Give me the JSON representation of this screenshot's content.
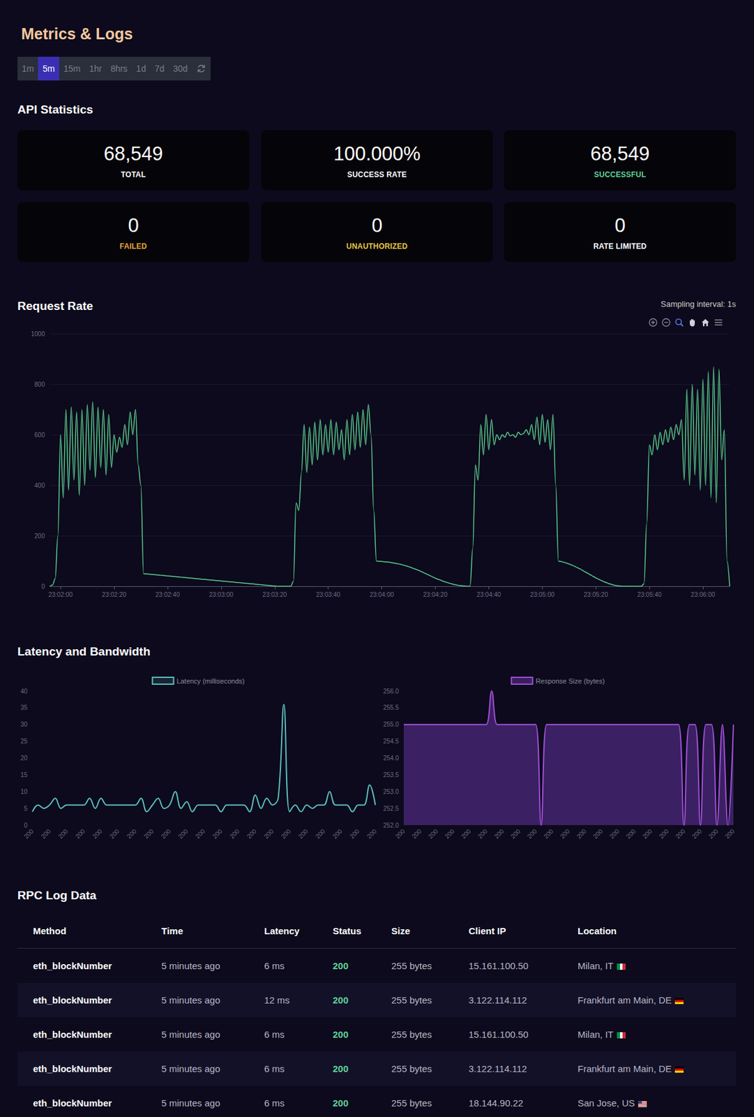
{
  "header": {
    "title": "Metrics & Logs",
    "time_ranges": [
      "1m",
      "5m",
      "15m",
      "1hr",
      "8hrs",
      "1d",
      "7d",
      "30d"
    ],
    "selected_range": "5m"
  },
  "api_statistics": {
    "title": "API Statistics",
    "cards": [
      {
        "value": "68,549",
        "label": "TOTAL"
      },
      {
        "value": "100.000%",
        "label": "SUCCESS RATE"
      },
      {
        "value": "68,549",
        "label": "SUCCESSFUL"
      },
      {
        "value": "0",
        "label": "FAILED"
      },
      {
        "value": "0",
        "label": "UNAUTHORIZED"
      },
      {
        "value": "0",
        "label": "RATE LIMITED"
      }
    ]
  },
  "latency_section": {
    "title": "Latency and Bandwidth"
  },
  "chart_data": [
    {
      "type": "line",
      "title": "Request Rate",
      "subtitle": "Sampling interval: 1s",
      "color": "#5ccf8f",
      "grid": true,
      "x": [
        82916,
        82917,
        82918,
        82919,
        82920,
        82921,
        82922,
        82923,
        82924,
        82925,
        82926,
        82927,
        82928,
        82929,
        82930,
        82931,
        82932,
        82933,
        82934,
        82935,
        82936,
        82937,
        82938,
        82939,
        82940,
        82941,
        82942,
        82943,
        82944,
        82945,
        82946,
        82947,
        82948,
        82949,
        82950,
        82951,
        82952,
        82953,
        82954,
        82955,
        82956,
        82957,
        82958,
        82959,
        82960,
        82961,
        82962,
        82963,
        82964,
        82965,
        82966,
        82967,
        82968,
        82969,
        82970,
        82971,
        82972,
        82973,
        82974,
        82975,
        82976,
        82977,
        82978,
        82979,
        82980,
        82981,
        82982,
        82983,
        82984,
        82985,
        82986,
        82987,
        82988,
        82989,
        82990,
        82991,
        82992,
        82993,
        82994,
        82995,
        82996,
        82997,
        82998,
        82999,
        83000,
        83001,
        83002,
        83003,
        83004,
        83005,
        83006,
        83007,
        83008,
        83009,
        83010,
        83011,
        83012,
        83013,
        83014,
        83015,
        83016,
        83017,
        83018,
        83019,
        83020,
        83021,
        83022,
        83023,
        83024,
        83025,
        83026,
        83027,
        83028,
        83029,
        83030,
        83031,
        83032,
        83033,
        83034,
        83035,
        83036,
        83037,
        83038,
        83039,
        83040,
        83041,
        83042,
        83043,
        83044,
        83045,
        83046,
        83047,
        83048,
        83049,
        83050,
        83051,
        83052,
        83053,
        83054,
        83055,
        83056,
        83057,
        83058,
        83059,
        83060,
        83061,
        83062,
        83063,
        83064,
        83065,
        83066,
        83067,
        83068,
        83069,
        83070,
        83071,
        83072,
        83073,
        83074,
        83075,
        83076,
        83077,
        83078,
        83079,
        83080,
        83081,
        83082,
        83083,
        83084,
        83085,
        83086,
        83087,
        83088,
        83089,
        83090,
        83091,
        83092,
        83093,
        83094,
        83095,
        83096,
        83097,
        83098,
        83099,
        83100,
        83101,
        83102,
        83103,
        83104,
        83105,
        83106,
        83107,
        83108,
        83109,
        83110,
        83111,
        83112,
        83113,
        83114,
        83115,
        83116,
        83117,
        83118,
        83119,
        83120,
        83121,
        83122,
        83123,
        83124,
        83125,
        83126,
        83127,
        83128,
        83129,
        83130,
        83131,
        83132,
        83133,
        83134,
        83135,
        83136,
        83137,
        83138,
        83139,
        83140,
        83141,
        83142,
        83143,
        83144,
        83145,
        83146,
        83147,
        83148,
        83149,
        83150,
        83151,
        83152,
        83153,
        83154,
        83155,
        83156,
        83157,
        83158,
        83159,
        83160,
        83161,
        83162,
        83163,
        83164,
        83165,
        83166,
        83167,
        83168,
        83169,
        83170
      ],
      "values": [
        0,
        5,
        30,
        200,
        600,
        350,
        700,
        380,
        710,
        420,
        690,
        360,
        700,
        400,
        720,
        460,
        730,
        430,
        710,
        470,
        700,
        440,
        680,
        470,
        600,
        530,
        590,
        550,
        640,
        560,
        690,
        600,
        700,
        480,
        400,
        50,
        49,
        48,
        47,
        46,
        45,
        44,
        43,
        42,
        41,
        40,
        39,
        38,
        37,
        36,
        35,
        34,
        33,
        32,
        31,
        30,
        29,
        28,
        27,
        26,
        25,
        24,
        23,
        22,
        21,
        20,
        19,
        18,
        17,
        16,
        15,
        14,
        13,
        12,
        11,
        10,
        9,
        8,
        7,
        6,
        5,
        4,
        3,
        2,
        1,
        0,
        0,
        0,
        0,
        0,
        0,
        20,
        330,
        300,
        450,
        640,
        450,
        630,
        480,
        650,
        500,
        660,
        520,
        640,
        530,
        660,
        520,
        650,
        540,
        620,
        500,
        660,
        520,
        680,
        540,
        690,
        550,
        700,
        560,
        720,
        600,
        300,
        100,
        99,
        98,
        97,
        96,
        95,
        93,
        91,
        89,
        87,
        84,
        81,
        78,
        74,
        70,
        66,
        62,
        57,
        52,
        47,
        42,
        37,
        32,
        28,
        24,
        20,
        16,
        13,
        10,
        7,
        5,
        3,
        2,
        1,
        0,
        0,
        150,
        480,
        420,
        640,
        520,
        680,
        540,
        660,
        560,
        600,
        580,
        600,
        590,
        610,
        595,
        600,
        590,
        610,
        600,
        605,
        620,
        600,
        640,
        580,
        670,
        560,
        680,
        570,
        660,
        540,
        680,
        400,
        100,
        98,
        95,
        92,
        88,
        84,
        79,
        74,
        69,
        63,
        57,
        51,
        45,
        39,
        33,
        28,
        23,
        18,
        14,
        10,
        7,
        4,
        2,
        1,
        0,
        0,
        0,
        0,
        0,
        0,
        0,
        0,
        10,
        250,
        560,
        520,
        600,
        540,
        610,
        560,
        620,
        570,
        630,
        580,
        640,
        600,
        660,
        420,
        780,
        400,
        800,
        440,
        780,
        380,
        820,
        400,
        850,
        350,
        870,
        330,
        860,
        500,
        620,
        100,
        0
      ],
      "xlim": [
        82916,
        83170
      ],
      "xticks": [
        {
          "value": 82920,
          "label": "23:02:00"
        },
        {
          "value": 82940,
          "label": "23:02:20"
        },
        {
          "value": 82960,
          "label": "23:02:40"
        },
        {
          "value": 82980,
          "label": "23:03:00"
        },
        {
          "value": 83000,
          "label": "23:03:20"
        },
        {
          "value": 83020,
          "label": "23:03:40"
        },
        {
          "value": 83040,
          "label": "23:04:00"
        },
        {
          "value": 83060,
          "label": "23:04:20"
        },
        {
          "value": 83080,
          "label": "23:04:40"
        },
        {
          "value": 83100,
          "label": "23:05:00"
        },
        {
          "value": 83120,
          "label": "23:05:20"
        },
        {
          "value": 83140,
          "label": "23:05:40"
        },
        {
          "value": 83160,
          "label": "23:06:00"
        }
      ],
      "ylim": [
        0,
        1000
      ],
      "yticks": [
        0,
        200,
        400,
        600,
        800,
        1000
      ]
    },
    {
      "type": "line",
      "legend": "top",
      "grid": false,
      "categories": [
        "200",
        null,
        null,
        "200",
        null,
        null,
        "200",
        null,
        null,
        "200",
        null,
        null,
        "200",
        null,
        null,
        "200",
        null,
        null,
        "200",
        null,
        null,
        "200",
        null,
        null,
        "200",
        null,
        null,
        "200",
        null,
        null,
        "200",
        null,
        null,
        "200",
        null,
        null,
        "200",
        null,
        null,
        "200",
        null,
        null,
        "200",
        null,
        null,
        "200",
        null,
        null,
        "200",
        null,
        null,
        "200",
        null,
        null,
        "200",
        null,
        null,
        "200",
        null,
        null,
        "200"
      ],
      "series": [
        {
          "name": "Latency (milliseconds)",
          "color": "#5bc0c0",
          "values": [
            4,
            6,
            5,
            6,
            8,
            5,
            6,
            6,
            6,
            6,
            8,
            5,
            8,
            6,
            6,
            6,
            6,
            6,
            6,
            8,
            4,
            6,
            8,
            5,
            6,
            10,
            5,
            7,
            4,
            6,
            6,
            6,
            6,
            4,
            6,
            6,
            6,
            6,
            4,
            9,
            5,
            8,
            6,
            8,
            36,
            4,
            6,
            4,
            6,
            5,
            6,
            6,
            10,
            6,
            6,
            6,
            4,
            6,
            6,
            12,
            6
          ]
        }
      ],
      "ylim": [
        0,
        40
      ],
      "yticks": [
        0,
        5,
        10,
        15,
        20,
        25,
        30,
        35,
        40
      ]
    },
    {
      "type": "area",
      "legend": "top",
      "grid": false,
      "categories": [
        "200",
        null,
        null,
        "200",
        null,
        null,
        "200",
        null,
        null,
        "200",
        null,
        null,
        "200",
        null,
        null,
        "200",
        null,
        null,
        "200",
        null,
        null,
        "200",
        null,
        null,
        "200",
        null,
        null,
        "200",
        null,
        null,
        "200",
        null,
        null,
        "200",
        null,
        null,
        "200",
        null,
        null,
        "200",
        null,
        null,
        "200",
        null,
        null,
        "200",
        null,
        null,
        "200",
        null,
        null,
        "200",
        null,
        null,
        "200",
        null,
        null,
        "200",
        null,
        null,
        "200"
      ],
      "series": [
        {
          "name": "Response Size (bytes)",
          "color": "#a24fd8",
          "values": [
            255,
            255,
            255,
            255,
            255,
            255,
            255,
            255,
            255,
            255,
            255,
            255,
            255,
            255,
            255,
            255,
            256,
            255,
            255,
            255,
            255,
            255,
            255,
            255,
            255,
            252,
            255,
            255,
            255,
            255,
            255,
            255,
            255,
            255,
            255,
            255,
            255,
            255,
            255,
            255,
            255,
            255,
            255,
            255,
            255,
            255,
            255,
            255,
            255,
            255,
            255,
            252,
            255,
            255,
            252,
            255,
            255,
            252,
            255,
            252,
            255
          ]
        }
      ],
      "ylim": [
        252,
        256
      ],
      "yticks": [
        {
          "value": 252,
          "label": "252.0"
        },
        {
          "value": 252.5,
          "label": "252.5"
        },
        {
          "value": 253,
          "label": "253.0"
        },
        {
          "value": 253.5,
          "label": "253.5"
        },
        {
          "value": 254,
          "label": "254.0"
        },
        {
          "value": 254.5,
          "label": "254.5"
        },
        {
          "value": 255,
          "label": "255.0"
        },
        {
          "value": 255.5,
          "label": "255.5"
        },
        {
          "value": 256,
          "label": "256.0"
        }
      ]
    }
  ],
  "log_table": {
    "title": "RPC Log Data",
    "columns": [
      "Method",
      "Time",
      "Latency",
      "Status",
      "Size",
      "Client IP",
      "Location"
    ],
    "rows": [
      [
        "eth_blockNumber",
        "5 minutes ago",
        "6 ms",
        "200",
        "255 bytes",
        "15.161.100.50",
        "Milan, IT"
      ],
      [
        "eth_blockNumber",
        "5 minutes ago",
        "12 ms",
        "200",
        "255 bytes",
        "3.122.114.112",
        "Frankfurt am Main, DE"
      ],
      [
        "eth_blockNumber",
        "5 minutes ago",
        "6 ms",
        "200",
        "255 bytes",
        "15.161.100.50",
        "Milan, IT"
      ],
      [
        "eth_blockNumber",
        "5 minutes ago",
        "6 ms",
        "200",
        "255 bytes",
        "3.122.114.112",
        "Frankfurt am Main, DE"
      ],
      [
        "eth_blockNumber",
        "5 minutes ago",
        "6 ms",
        "200",
        "255 bytes",
        "18.144.90.22",
        "San Jose, US"
      ]
    ]
  }
}
